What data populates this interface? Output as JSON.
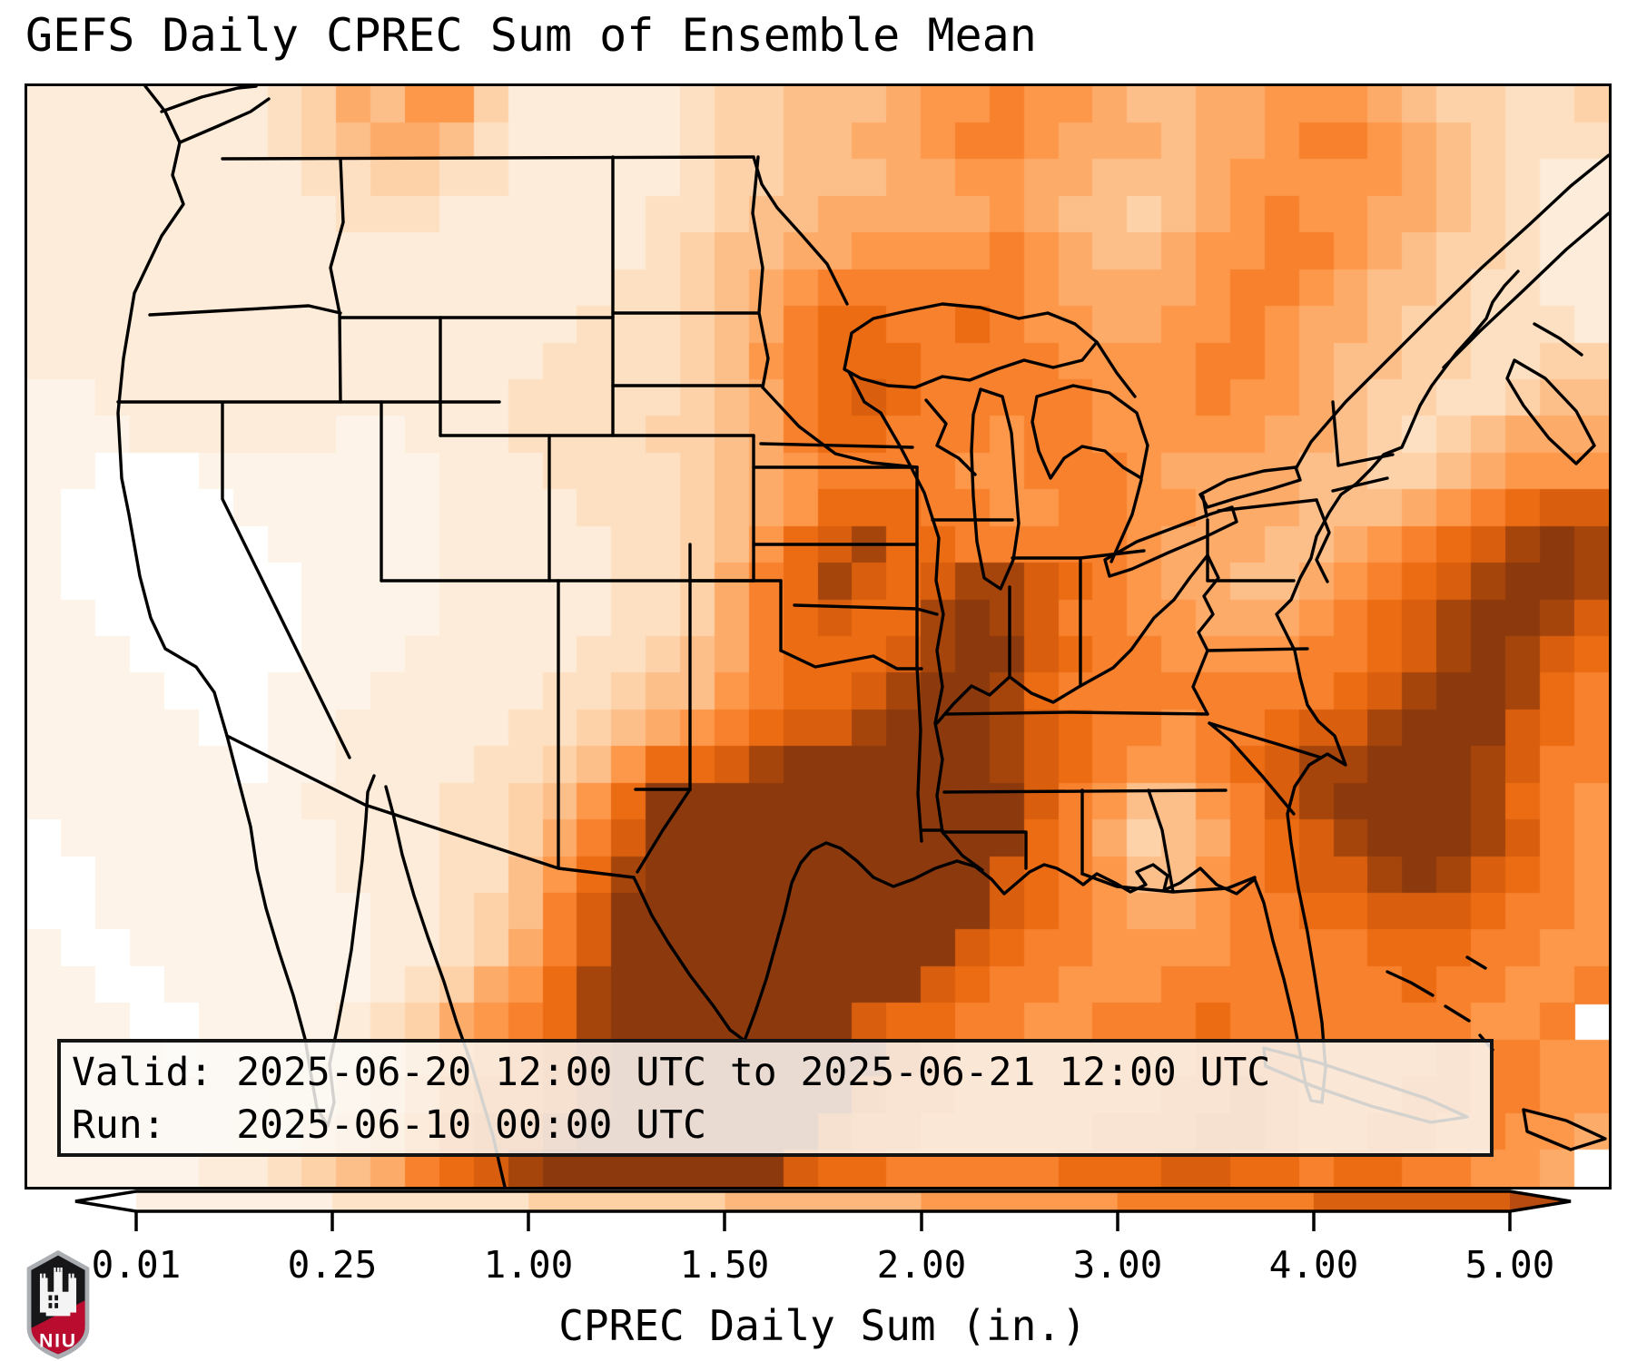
{
  "title": "GEFS Daily CPREC Sum of Ensemble Mean",
  "info_box": {
    "line1": "Valid: 2025-06-20 12:00 UTC to 2025-06-21 12:00 UTC",
    "line2": "Run:   2025-06-10 00:00 UTC"
  },
  "colorbar": {
    "label": "CPREC Daily Sum (in.)",
    "ticks": [
      "0.01",
      "0.25",
      "1.00",
      "1.50",
      "2.00",
      "3.00",
      "4.00",
      "5.00"
    ],
    "segment_colors": [
      "#fdf0e2",
      "#fde3c7",
      "#fdd1a4",
      "#fdb77c",
      "#fd9a4e",
      "#f57f26",
      "#d9600f"
    ],
    "under_color": "#ffffff",
    "over_color": "#b84b0f"
  },
  "chart_data": {
    "type": "heatmap",
    "title": "GEFS Daily CPREC Sum of Ensemble Mean",
    "colorbar_label": "CPREC Daily Sum (in.)",
    "levels_in": [
      0.01,
      0.25,
      1.0,
      1.5,
      2.0,
      3.0,
      4.0,
      5.0
    ],
    "level_colors": [
      "#fdf0e2",
      "#fde3c7",
      "#fdd1a4",
      "#fdb77c",
      "#fd9a4e",
      "#f57f26",
      "#d9600f"
    ],
    "under_color": "#ffffff",
    "over_color": "#b84b0f",
    "legend_position": "bottom",
    "valid_period": "2025-06-20 12:00 UTC to 2025-06-21 12:00 UTC",
    "run_time": "2025-06-10 00:00 UTC"
  },
  "logo": {
    "text": "NIU",
    "shield_gray": "#aaadb2",
    "shield_black": "#17171a",
    "shield_red": "#ba0c2f",
    "castle_white": "#f4f4f4"
  },
  "map": {
    "palette": {
      "0": "#ffffff",
      "1": "#fdf3e8",
      "2": "#fdecd9",
      "3": "#fde0c2",
      "4": "#fdd2a9",
      "5": "#fdbf8a",
      "6": "#fdab69",
      "7": "#fd9749",
      "8": "#f8812d",
      "9": "#ec6c13",
      "A": "#d95f0e",
      "B": "#c1510c",
      "C": "#a5450c",
      "D": "#8c3a0d"
    },
    "grid_cols": 46,
    "grid_rows": [
      "2222222346577422222344555677877655667776544334",
      "2222222345665322222344556678876665667887654333",
      "2222222233443322222344555667766555677777654322",
      "2222222223332222223345566666765545678776654322",
      "2222222222222222223455667777876556778876544322",
      "2222222222222222233456788888876666788765543322",
      "2222222222222222333456899889877667787665443332",
      "2222222222222223333457899988887777887655443344",
      "112222222222223333345689A988888777877654433455",
      "1112222221122233334456899888788777776654345666",
      "1100011111112223333456788887788876666554456777",
      "10000011111122223334567999887788776665556789AA",
      "10000001111122222334579AC99888887666556789ACDC",
      "10000000111122222334689CA9ACCA98766556789ACDDC",
      "11000000111122222334689A99CDCA8877666789ACDDCA",
      "1110000011122222334568999ACDDA9887777889ACDCA9",
      "111100011122222334557899ACDDC9888888889ACDDC98",
      "1111100112222233456789AACDDDCA9887889AACDDDA98",
      "11111101122223345799ACDDDDDDCA987789ACCDDDCA88",
      "111111112222334579DDDDDDDDDDDA875578ACDDDDC987",
      "01111111122233468ADDDDDDDDDDD98645689ACDDDCA87",
      "00111111122233579CDDDDDDDDDDA98755789AACDCA987",
      "0011111111223458ADDDDDDDDDDDA9876678899AAA9887",
      "1001111111223468ADDDDDDDDDDA988777788889998877",
      "1100111111234679CDDDDDDDDDA9887778888888988778",
      "1110011112346789CDDDDDDDA99887788898888888778",
      "111101112235789ACDDDDDDDDA98888888999888898877",
      "111111122346899ACDDDDDDDA9988888899A9888998877",
      "1111112234579AACDDDDDDDA9988888999AA9889988776",
      "1111122345689ACDDDDDDDA9988888999AA99899887760"
    ],
    "boundaries": [
      "M130,0 L152,28 168,62 160,98 172,130 148,165 118,228 106,300 100,360 104,432 112,472 124,540 136,586 152,620 186,640 206,668 220,716 233,766 246,816 253,863 263,906 277,953 293,1002 306,1050 313,1092 319,1126 331,1146 338,1120 333,1078 341,1040 349,998 357,952 363,903 369,853 373,808 375,778 382,760",
      "M395,772 L403,802 413,847 426,892 441,937 459,987 473,1032 489,1077 501,1117 513,1157 521,1192 526,1213",
      "M148,28 L192,12 232,2 252,0",
      "M168,62 L210,44 246,28 266,14",
      "M220,716 L372,792 585,862 668,872",
      "M668,872 L672,880 688,914 706,944 730,980 756,1014 774,1040 790,1052",
      "M790,1052 L802,1020 814,984 824,948 834,912 842,878 852,856 864,842 880,834 896,840 914,854 932,872 954,882 976,874 1000,862 1024,854 1044,860 1062,874 1076,890 1090,878 1104,866 1120,858 1134,862 1152,872 1163,880 1178,868 1198,878 1215,888 1232,880 1222,866 1240,858 1256,870 1252,886 1270,878 1292,862 1310,880 1332,890 1352,874 1362,900 1372,942 1384,984 1394,1026 1402,1066 1408,1100 1414,1118 1426,1120 1430,1082 1426,1032 1418,980 1410,932 1400,884 1392,834 1388,802 1396,772 1412,748 1432,736 1452,748 1440,716 1422,700 1410,682 1402,652 1396,622 1386,602 1376,582 1392,566 1402,542 1414,520 1420,496 1434,470 1447,450 1464,438 1480,422 1494,406 1514,398 1522,380 1534,352 1547,330 1562,310 1574,294 1592,274 1607,256 1614,238 1627,220 1642,204",
      "M1742,76 L1700,110 1655,152 1602,200 1548,252 1500,300 1452,348 1414,392 1398,420",
      "M1742,140 L1695,180 1648,225 1600,270 1560,310",
      "M1638,302 L1672,322 1706,358 1726,396 1706,416 1676,388 1648,352 1630,322 Z",
      "M1660,262 L1688,278 1712,296",
      "M215,80 L800,78",
      "M800,78 L809,108 826,134 853,164 881,196 903,240",
      "M900,312 L908,272 932,256 968,248 1008,240 1050,244 1092,256 1124,250 1154,262 1178,282 1162,302 1130,310 1098,302 1068,312 1038,324 1008,320 978,332 948,330 918,322 Z",
      "M1178,282 L1200,316 1220,342",
      "M1050,334 L1074,342 1084,382 1088,432 1092,482 1086,522 1072,554 1054,542 1046,502 1042,452 1040,402 1042,362 Z",
      "M1112,342 L1152,330 1192,338 1222,360 1234,396 1227,432 1207,420 1187,402 1162,397 1142,410 1127,432 1114,402 1107,370 Z",
      "M1187,522 L1222,502 1262,487 1302,472 1327,464 1332,480 1297,497 1257,514 1217,532 1192,540 Z",
      "M1292,450 L1322,434 1362,424 1397,420 1402,434 1370,444 1332,454 1300,464 Z",
      "M1227,434 L1217,472 1194,524",
      "M1299,474 L1295,452",
      "M135,252 L240,246 310,242 345,250",
      "M345,80 L348,150 334,200 344,250 345,348",
      "M100,348 L520,348",
      "M345,255 L645,255",
      "M645,78 L645,385",
      "M455,255 L455,385",
      "M455,385 L800,385",
      "M390,348 L390,545",
      "M215,350 L215,455 355,740",
      "M575,385 L575,545",
      "M390,545 L800,545",
      "M585,545 L585,862",
      "M800,385 L800,545",
      "M805,78 L799,140 810,200 806,250 816,300 810,332",
      "M645,250 L805,250",
      "M645,330 L810,330",
      "M810,332 L850,375 890,405 930,415 980,420",
      "M800,420 L980,420",
      "M800,505 L980,505",
      "M980,420 L980,640 984,710 981,780 985,832",
      "M730,505 L730,545",
      "M730,545 L830,545",
      "M730,545 L730,775",
      "M830,545 L830,622",
      "M830,622 L868,640 900,634 932,628 958,642 985,642",
      "M670,775 L730,775",
      "M730,775 L700,820 672,866",
      "M845,572 L980,576 1002,582",
      "M808,394 L975,398",
      "M940,360 L962,398 988,448 1004,498 1001,545 1009,582 1002,622 1008,662 1000,702 1008,742 1002,782 1008,822 1030,848 1052,864",
      "M905,315 L922,348 940,360",
      "M990,346 L1012,372 1002,396 1026,410 1044,428",
      "M997,478 L1085,478",
      "M1082,552 L1082,650",
      "M1300,517 L1281,541 1263,566 1241,586 1216,621 1196,641 1160,661 1130,679 1106,669 1082,651 1060,671 1040,661 1020,681 1002,702",
      "M1160,520 L1160,661",
      "M1085,520 L1160,520",
      "M1160,520 L1230,512",
      "M1012,692 L1150,690 1300,692",
      "M1010,778 L1320,776",
      "M1162,776 L1162,868",
      "M1008,822 L1100,822 1100,862",
      "M985,820 L1008,820",
      "M1235,776 L1250,820 1262,888",
      "M1162,868 L1200,882 1262,888 1322,884 1352,872",
      "M1395,802 L1360,760 1326,722 1302,702",
      "M1302,702 L1340,714 1380,726 1425,740",
      "M1300,622 L1410,620",
      "M1300,692 L1284,662 1300,622",
      "M1300,517 L1312,542 1296,562 1306,582 1290,602 1300,622",
      "M1300,545 L1395,545",
      "M1300,478 L1300,545",
      "M1312,468 L1420,456",
      "M1420,456 L1434,492 1420,522 1432,546",
      "M1438,348 L1444,418",
      "M1444,418 L1504,406",
      "M1438,446 L1498,432",
      "M1362,1060 L1422,1076 1482,1096 1542,1116 1586,1136 1546,1142 1480,1124 1416,1102 1364,1080 Z",
      "M1648,1128 L1695,1140 1738,1160 1700,1172 1652,1152 Z",
      "M1498,976 L1524,988 1548,1002",
      "M1562,1014 L1588,1030",
      "M1600,1046 L1614,1062",
      "M1586,960 L1606,972"
    ]
  }
}
